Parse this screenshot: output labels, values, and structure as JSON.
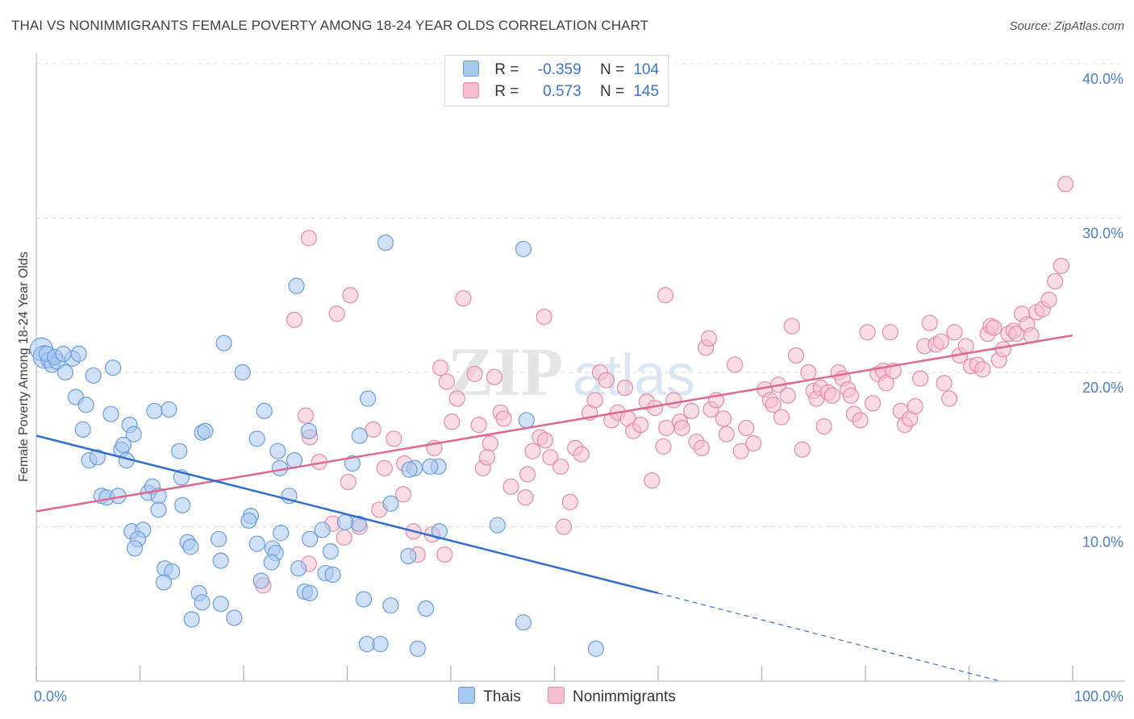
{
  "title": "THAI VS NONIMMIGRANTS FEMALE POVERTY AMONG 18-24 YEAR OLDS CORRELATION CHART",
  "source": "Source: ZipAtlas.com",
  "watermark": {
    "zip": "ZIP",
    "atlas": "atlas"
  },
  "colors": {
    "thais_fill": "#a9c8f0",
    "thais_stroke": "#6a9ee0",
    "thais_line": "#2f6fcf",
    "nonimm_fill": "#f6bfd0",
    "nonimm_stroke": "#e88aa8",
    "nonimm_line": "#e06890",
    "tick_text": "#4a7fd0",
    "grid": "#dcdcdc"
  },
  "legend": {
    "rows": [
      {
        "r_label": "R =",
        "r_value": "-0.359",
        "n_label": "N =",
        "n_value": "104"
      },
      {
        "r_label": "R =",
        "r_value": "0.573",
        "n_label": "N =",
        "n_value": "145"
      }
    ]
  },
  "bottom_legend": [
    "Thais",
    "Nonimmigrants"
  ],
  "chart_data": {
    "type": "scatter",
    "ylabel": "Female Poverty Among 18-24 Year Olds",
    "xlabel": "",
    "xlim": [
      0,
      100
    ],
    "ylim": [
      0,
      40
    ],
    "x_tick_labels": [
      "0.0%",
      "100.0%"
    ],
    "y_ticks": [
      10,
      20,
      30,
      40
    ],
    "y_tick_labels": [
      "10.0%",
      "20.0%",
      "30.0%",
      "40.0%"
    ],
    "grid": true,
    "legend_placement": "top-center",
    "series": [
      {
        "name": "Thais",
        "R": -0.359,
        "N": 104,
        "trend": {
          "x0": 0,
          "y0": 15.9,
          "x1": 60,
          "y1": 5.7,
          "dash_to_x": 93,
          "dash_to_y": 0.0
        },
        "points": [
          [
            0.5,
            21.5
          ],
          [
            0.8,
            21.0
          ],
          [
            1.2,
            20.8
          ],
          [
            1.5,
            20.5
          ],
          [
            2.0,
            20.7
          ],
          [
            2.8,
            20.0
          ],
          [
            3.5,
            20.9
          ],
          [
            4.1,
            21.2
          ],
          [
            1.0,
            21.2
          ],
          [
            1.8,
            21.0
          ],
          [
            3.8,
            18.4
          ],
          [
            4.8,
            17.9
          ],
          [
            5.5,
            19.8
          ],
          [
            7.2,
            17.3
          ],
          [
            7.4,
            20.3
          ],
          [
            9.0,
            16.6
          ],
          [
            9.4,
            16.0
          ],
          [
            11.4,
            17.5
          ],
          [
            12.8,
            17.6
          ],
          [
            18.1,
            21.9
          ],
          [
            19.9,
            20.0
          ],
          [
            22.0,
            17.5
          ],
          [
            4.5,
            16.3
          ],
          [
            5.1,
            14.3
          ],
          [
            5.9,
            14.5
          ],
          [
            8.2,
            15.0
          ],
          [
            8.4,
            15.3
          ],
          [
            8.7,
            14.3
          ],
          [
            13.8,
            14.9
          ],
          [
            16.0,
            16.1
          ],
          [
            16.3,
            16.2
          ],
          [
            21.3,
            15.7
          ],
          [
            23.3,
            14.9
          ],
          [
            25.1,
            25.6
          ],
          [
            33.7,
            28.4
          ],
          [
            47.0,
            28.0
          ],
          [
            24.9,
            14.3
          ],
          [
            26.3,
            16.2
          ],
          [
            30.5,
            14.1
          ],
          [
            31.2,
            15.9
          ],
          [
            32.0,
            18.3
          ],
          [
            44.5,
            10.1
          ],
          [
            47.3,
            16.9
          ],
          [
            38.8,
            13.9
          ],
          [
            36.5,
            13.8
          ],
          [
            34.2,
            11.5
          ],
          [
            31.1,
            10.2
          ],
          [
            29.8,
            10.3
          ],
          [
            6.3,
            12.0
          ],
          [
            6.8,
            11.9
          ],
          [
            7.9,
            12.0
          ],
          [
            10.8,
            12.2
          ],
          [
            11.2,
            12.6
          ],
          [
            11.8,
            12.0
          ],
          [
            14.0,
            13.2
          ],
          [
            23.5,
            13.8
          ],
          [
            24.4,
            12.0
          ],
          [
            20.7,
            10.7
          ],
          [
            20.5,
            10.4
          ],
          [
            9.2,
            9.7
          ],
          [
            10.3,
            9.8
          ],
          [
            9.8,
            9.2
          ],
          [
            14.1,
            11.4
          ],
          [
            11.8,
            11.1
          ],
          [
            14.6,
            9.0
          ],
          [
            14.9,
            8.7
          ],
          [
            17.6,
            9.2
          ],
          [
            21.3,
            8.9
          ],
          [
            22.8,
            8.6
          ],
          [
            23.1,
            8.3
          ],
          [
            23.6,
            9.6
          ],
          [
            26.4,
            9.2
          ],
          [
            27.6,
            9.8
          ],
          [
            28.4,
            8.4
          ],
          [
            9.5,
            8.6
          ],
          [
            12.4,
            7.3
          ],
          [
            13.1,
            7.1
          ],
          [
            17.8,
            7.8
          ],
          [
            22.7,
            7.7
          ],
          [
            25.3,
            7.3
          ],
          [
            27.9,
            7.0
          ],
          [
            28.6,
            6.9
          ],
          [
            21.7,
            6.5
          ],
          [
            12.3,
            6.4
          ],
          [
            15.7,
            5.7
          ],
          [
            16.0,
            5.1
          ],
          [
            17.8,
            5.0
          ],
          [
            25.9,
            5.8
          ],
          [
            26.4,
            5.7
          ],
          [
            31.6,
            5.3
          ],
          [
            34.2,
            4.9
          ],
          [
            37.6,
            4.7
          ],
          [
            15.0,
            4.0
          ],
          [
            19.1,
            4.1
          ],
          [
            31.9,
            2.4
          ],
          [
            33.2,
            2.4
          ],
          [
            36.8,
            2.1
          ],
          [
            47.0,
            3.8
          ],
          [
            54.0,
            2.1
          ],
          [
            38.9,
            9.7
          ],
          [
            35.9,
            8.1
          ],
          [
            38.0,
            13.9
          ],
          [
            36.0,
            13.7
          ],
          [
            2.6,
            21.2
          ]
        ],
        "sizes_note": "two leftmost points are larger"
      },
      {
        "name": "Nonimmigrants",
        "R": 0.573,
        "N": 145,
        "trend": {
          "x0": 0,
          "y0": 11.0,
          "x1": 100,
          "y1": 22.4
        },
        "points": [
          [
            26.3,
            28.7
          ],
          [
            30.3,
            25.0
          ],
          [
            41.2,
            24.8
          ],
          [
            60.7,
            25.0
          ],
          [
            29.0,
            23.8
          ],
          [
            24.9,
            23.4
          ],
          [
            49.0,
            23.6
          ],
          [
            42.3,
            19.9
          ],
          [
            40.1,
            16.8
          ],
          [
            39.6,
            19.4
          ],
          [
            39.0,
            20.3
          ],
          [
            40.6,
            18.3
          ],
          [
            38.4,
            15.1
          ],
          [
            34.5,
            15.7
          ],
          [
            33.6,
            13.8
          ],
          [
            35.5,
            14.1
          ],
          [
            32.5,
            16.3
          ],
          [
            30.1,
            12.9
          ],
          [
            26.0,
            17.2
          ],
          [
            26.4,
            15.8
          ],
          [
            27.3,
            14.2
          ],
          [
            28.6,
            10.2
          ],
          [
            31.2,
            10.0
          ],
          [
            29.7,
            9.3
          ],
          [
            26.3,
            7.6
          ],
          [
            21.9,
            6.2
          ],
          [
            33.1,
            11.1
          ],
          [
            35.4,
            12.1
          ],
          [
            36.4,
            9.7
          ],
          [
            36.8,
            8.2
          ],
          [
            38.2,
            9.5
          ],
          [
            39.4,
            8.2
          ],
          [
            42.7,
            16.6
          ],
          [
            43.1,
            13.8
          ],
          [
            43.8,
            15.4
          ],
          [
            43.5,
            14.5
          ],
          [
            44.8,
            17.4
          ],
          [
            45.1,
            17.0
          ],
          [
            44.2,
            19.7
          ],
          [
            45.8,
            12.6
          ],
          [
            47.2,
            11.9
          ],
          [
            47.4,
            13.4
          ],
          [
            47.9,
            14.9
          ],
          [
            48.6,
            15.8
          ],
          [
            49.1,
            15.6
          ],
          [
            49.6,
            14.5
          ],
          [
            50.6,
            13.9
          ],
          [
            50.9,
            10.0
          ],
          [
            51.5,
            11.6
          ],
          [
            52.0,
            15.1
          ],
          [
            52.6,
            14.7
          ],
          [
            53.4,
            17.4
          ],
          [
            53.9,
            18.2
          ],
          [
            54.4,
            20.0
          ],
          [
            55.0,
            19.5
          ],
          [
            55.5,
            16.9
          ],
          [
            56.1,
            17.4
          ],
          [
            56.8,
            19.0
          ],
          [
            57.1,
            17.0
          ],
          [
            57.6,
            16.2
          ],
          [
            58.3,
            16.6
          ],
          [
            58.9,
            18.1
          ],
          [
            59.4,
            13.0
          ],
          [
            59.7,
            17.7
          ],
          [
            60.5,
            15.2
          ],
          [
            60.8,
            16.4
          ],
          [
            61.5,
            18.2
          ],
          [
            62.1,
            16.8
          ],
          [
            62.3,
            16.4
          ],
          [
            63.2,
            17.5
          ],
          [
            63.7,
            15.5
          ],
          [
            64.2,
            15.1
          ],
          [
            64.6,
            21.6
          ],
          [
            64.9,
            22.2
          ],
          [
            65.1,
            17.6
          ],
          [
            65.6,
            18.2
          ],
          [
            66.3,
            17.0
          ],
          [
            66.6,
            16.0
          ],
          [
            67.4,
            20.5
          ],
          [
            68.0,
            14.9
          ],
          [
            68.5,
            16.4
          ],
          [
            69.2,
            15.4
          ],
          [
            70.3,
            18.9
          ],
          [
            70.8,
            18.2
          ],
          [
            71.1,
            17.9
          ],
          [
            71.6,
            19.2
          ],
          [
            71.9,
            17.1
          ],
          [
            72.5,
            18.5
          ],
          [
            72.9,
            23.0
          ],
          [
            73.3,
            21.1
          ],
          [
            73.9,
            15.0
          ],
          [
            74.5,
            20.0
          ],
          [
            75.0,
            18.8
          ],
          [
            75.3,
            18.3
          ],
          [
            75.7,
            19.0
          ],
          [
            76.0,
            16.5
          ],
          [
            76.4,
            18.7
          ],
          [
            76.8,
            18.5
          ],
          [
            77.4,
            20.0
          ],
          [
            77.8,
            19.6
          ],
          [
            78.3,
            18.9
          ],
          [
            78.6,
            18.5
          ],
          [
            78.9,
            17.3
          ],
          [
            79.5,
            16.9
          ],
          [
            80.2,
            22.6
          ],
          [
            80.7,
            18.0
          ],
          [
            81.2,
            19.9
          ],
          [
            81.7,
            20.1
          ],
          [
            82.0,
            19.3
          ],
          [
            82.4,
            22.6
          ],
          [
            82.7,
            20.1
          ],
          [
            83.4,
            17.5
          ],
          [
            83.8,
            16.6
          ],
          [
            84.3,
            17.0
          ],
          [
            84.8,
            17.8
          ],
          [
            85.3,
            19.6
          ],
          [
            85.7,
            21.7
          ],
          [
            86.2,
            23.2
          ],
          [
            86.8,
            21.8
          ],
          [
            87.3,
            22.0
          ],
          [
            87.6,
            19.3
          ],
          [
            88.1,
            18.3
          ],
          [
            88.6,
            22.6
          ],
          [
            89.1,
            21.1
          ],
          [
            89.7,
            21.7
          ],
          [
            90.2,
            20.4
          ],
          [
            90.8,
            20.5
          ],
          [
            91.3,
            20.2
          ],
          [
            91.8,
            22.5
          ],
          [
            92.1,
            23.0
          ],
          [
            92.4,
            22.9
          ],
          [
            92.9,
            20.8
          ],
          [
            93.3,
            21.5
          ],
          [
            93.8,
            22.5
          ],
          [
            94.3,
            22.7
          ],
          [
            94.6,
            22.5
          ],
          [
            95.1,
            23.8
          ],
          [
            95.6,
            23.1
          ],
          [
            96.0,
            22.4
          ],
          [
            96.5,
            23.9
          ],
          [
            97.1,
            24.1
          ],
          [
            97.7,
            24.7
          ],
          [
            98.3,
            25.9
          ],
          [
            98.9,
            26.9
          ],
          [
            99.3,
            32.2
          ]
        ]
      }
    ]
  }
}
